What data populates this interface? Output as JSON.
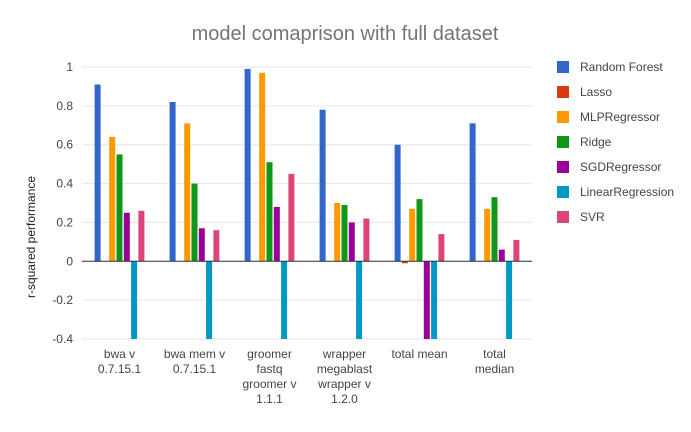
{
  "chart_data": {
    "type": "bar",
    "title": "model comaprison with full dataset",
    "xlabel": "",
    "ylabel": "r-squared performance",
    "ylim": [
      -0.4,
      1
    ],
    "yticks": [
      "1",
      "0.8",
      "0.6",
      "0.4",
      "0.2",
      "0",
      "-0.2",
      "-0.4"
    ],
    "grid": true,
    "legend_position": "right",
    "categories": [
      [
        "bwa v",
        "0.7.15.1"
      ],
      [
        "bwa mem v",
        "0.7.15.1"
      ],
      [
        "groomer",
        "fastq",
        "groomer v",
        "1.1.1"
      ],
      [
        "wrapper",
        "megablast",
        "wrapper v",
        "1.2.0"
      ],
      [
        "total mean"
      ],
      [
        "total",
        "median"
      ]
    ],
    "series": [
      {
        "name": "Random Forest",
        "color": "#3366cc",
        "values": [
          0.91,
          0.82,
          0.99,
          0.78,
          0.6,
          0.71
        ]
      },
      {
        "name": "Lasso",
        "color": "#dc3912",
        "values": [
          0,
          0,
          0,
          0,
          -0.01,
          0
        ]
      },
      {
        "name": "MLPRegressor",
        "color": "#ff9900",
        "values": [
          0.64,
          0.71,
          0.97,
          0.3,
          0.27,
          0.27
        ]
      },
      {
        "name": "Ridge",
        "color": "#109618",
        "values": [
          0.55,
          0.4,
          0.51,
          0.29,
          0.32,
          0.33
        ]
      },
      {
        "name": "SGDRegressor",
        "color": "#990099",
        "values": [
          0.25,
          0.17,
          0.28,
          0.2,
          -0.4,
          0.06
        ]
      },
      {
        "name": "LinearRegression",
        "color": "#0099c6",
        "values": [
          -0.4,
          -0.4,
          -0.4,
          -0.4,
          -0.4,
          -0.4
        ]
      },
      {
        "name": "SVR",
        "color": "#dd4477",
        "values": [
          0.26,
          0.16,
          0.45,
          0.22,
          0.14,
          0.11
        ]
      }
    ]
  }
}
